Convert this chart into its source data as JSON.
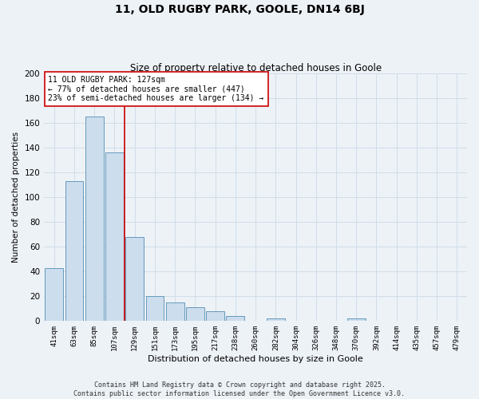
{
  "title": "11, OLD RUGBY PARK, GOOLE, DN14 6BJ",
  "subtitle": "Size of property relative to detached houses in Goole",
  "xlabel": "Distribution of detached houses by size in Goole",
  "ylabel": "Number of detached properties",
  "bar_labels": [
    "41sqm",
    "63sqm",
    "85sqm",
    "107sqm",
    "129sqm",
    "151sqm",
    "173sqm",
    "195sqm",
    "217sqm",
    "238sqm",
    "260sqm",
    "282sqm",
    "304sqm",
    "326sqm",
    "348sqm",
    "370sqm",
    "392sqm",
    "414sqm",
    "435sqm",
    "457sqm",
    "479sqm"
  ],
  "bar_values": [
    43,
    113,
    165,
    136,
    68,
    20,
    15,
    11,
    8,
    4,
    0,
    2,
    0,
    0,
    0,
    2,
    0,
    0,
    0,
    0,
    0
  ],
  "bar_color": "#ccdded",
  "bar_edge_color": "#6699bb",
  "ylim": [
    0,
    200
  ],
  "yticks": [
    0,
    20,
    40,
    60,
    80,
    100,
    120,
    140,
    160,
    180,
    200
  ],
  "red_line_index": 4,
  "annotation_text": "11 OLD RUGBY PARK: 127sqm\n← 77% of detached houses are smaller (447)\n23% of semi-detached houses are larger (134) →",
  "annotation_box_color": "#ffffff",
  "annotation_box_edge": "#cc0000",
  "red_line_color": "#cc0000",
  "grid_color": "#d0dde8",
  "background_color": "#edf2f7",
  "footer_line1": "Contains HM Land Registry data © Crown copyright and database right 2025.",
  "footer_line2": "Contains public sector information licensed under the Open Government Licence v3.0."
}
